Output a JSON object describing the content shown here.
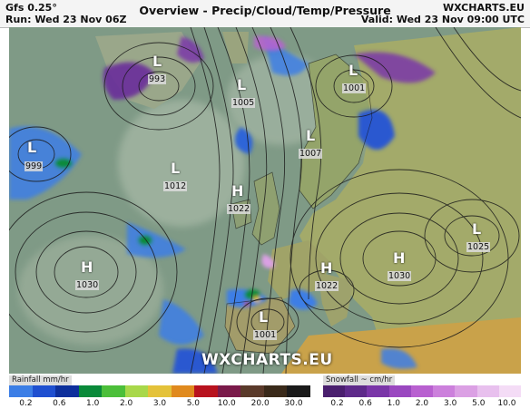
{
  "header": {
    "model": "Gfs 0.25°",
    "run": "Run: Wed 23 Nov 06Z",
    "title": "Overview - Precip/Cloud/Temp/Pressure",
    "brand": "WXCHARTS.EU",
    "valid": "Valid: Wed 23 Nov 09:00 UTC"
  },
  "pressure_systems": [
    {
      "type": "L",
      "value": "993"
    },
    {
      "type": "L",
      "value": "1005"
    },
    {
      "type": "L",
      "value": "1001"
    },
    {
      "type": "L",
      "value": "999"
    },
    {
      "type": "L",
      "value": "1007"
    },
    {
      "type": "L",
      "value": "1012"
    },
    {
      "type": "H",
      "value": "1022"
    },
    {
      "type": "L",
      "value": "1025"
    },
    {
      "type": "H",
      "value": "1030"
    },
    {
      "type": "H",
      "value": "1022"
    },
    {
      "type": "H",
      "value": "1030"
    },
    {
      "type": "L",
      "value": "1001"
    }
  ],
  "watermark": "WXCHARTS.EU",
  "legend": {
    "rain_title": "Rainfall mm/hr",
    "rain_ticks": [
      "0.2",
      "0.6",
      "1.0",
      "2.0",
      "3.0",
      "5.0",
      "10.0",
      "20.0",
      "30.0"
    ],
    "rain_colors": [
      "#3c7ee6",
      "#1f4fd0",
      "#0d2f9c",
      "#0a8a3a",
      "#4cbf3a",
      "#a8d84a",
      "#e4c23a",
      "#e08a1e",
      "#b8121e",
      "#7a1a4a",
      "#5a3a2a",
      "#3a2a1a",
      "#1a1a1a"
    ],
    "snow_title": "Snowfall ~ cm/hr",
    "snow_ticks": [
      "0.2",
      "0.6",
      "1.0",
      "2.0",
      "3.0",
      "5.0",
      "10.0"
    ],
    "snow_colors": [
      "#4a1f6e",
      "#5e2a8a",
      "#7a36a8",
      "#9a48c0",
      "#b860d0",
      "#cc80dc",
      "#dba0e4",
      "#e8c0ee",
      "#f4dcf6"
    ],
    "ocean_color": "#7f9a86",
    "land_color": "#9ea86e"
  }
}
